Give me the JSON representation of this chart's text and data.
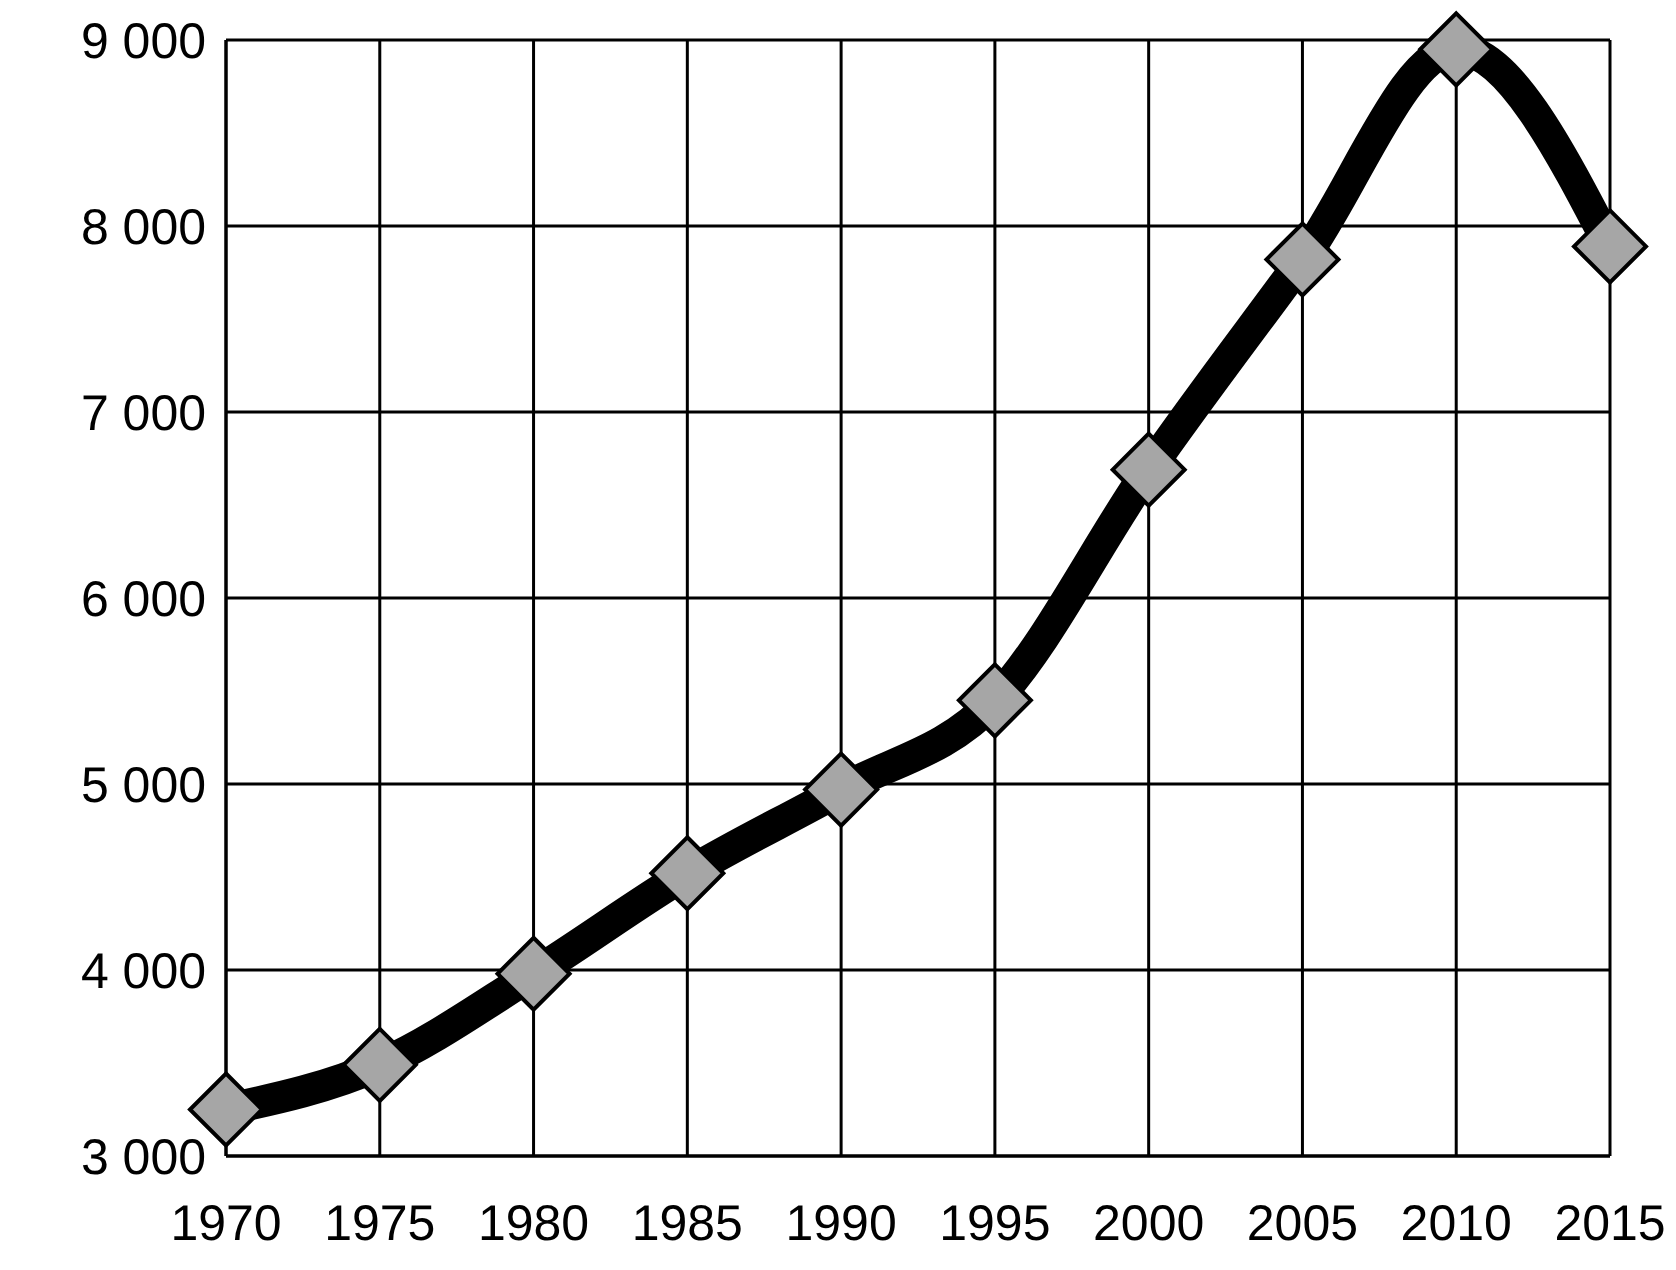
{
  "chart_data": {
    "type": "line",
    "x": [
      1970,
      1975,
      1980,
      1985,
      1990,
      1995,
      2000,
      2005,
      2010,
      2015
    ],
    "series": [
      {
        "color": "#000000",
        "values": [
          3250,
          3490,
          3980,
          4520,
          4970,
          5450,
          6690,
          7820,
          8950,
          7890
        ]
      }
    ],
    "xlim": [
      1970,
      2015
    ],
    "xticks": [
      1970,
      1975,
      1980,
      1985,
      1990,
      1995,
      2000,
      2005,
      2010,
      2015
    ],
    "ylim": [
      3000,
      9000
    ],
    "yticks": [
      {
        "value": 3000,
        "label": "3 000"
      },
      {
        "value": 4000,
        "label": "4 000"
      },
      {
        "value": 5000,
        "label": "5 000"
      },
      {
        "value": 6000,
        "label": "6 000"
      },
      {
        "value": 7000,
        "label": "7 000"
      },
      {
        "value": 8000,
        "label": "8 000"
      },
      {
        "value": 9000,
        "label": "9 000"
      }
    ],
    "grid": true,
    "marker": "diamond",
    "line_style": "solid"
  }
}
